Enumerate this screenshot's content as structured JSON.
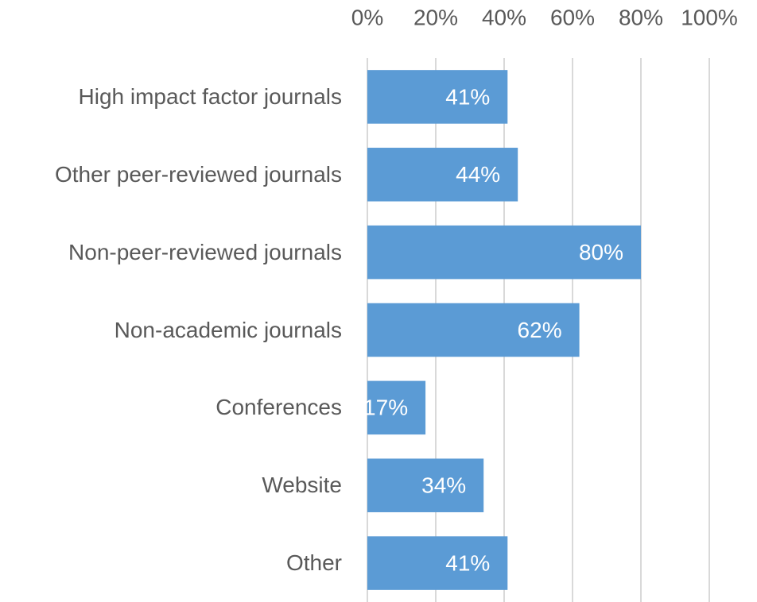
{
  "chart_data": {
    "type": "hbar",
    "categories": [
      "High impact factor journals",
      "Other peer-reviewed journals",
      "Non-peer-reviewed journals",
      "Non-academic journals",
      "Conferences",
      "Website",
      "Other"
    ],
    "values": [
      41,
      44,
      80,
      62,
      17,
      34,
      41
    ],
    "value_labels": [
      "41%",
      "44%",
      "80%",
      "62%",
      "17%",
      "34%",
      "41%"
    ],
    "color": "#5b9bd5",
    "xlim": [
      0,
      100
    ],
    "xticks": [
      {
        "value": 0,
        "label": "0%"
      },
      {
        "value": 20,
        "label": "20%"
      },
      {
        "value": 40,
        "label": "40%"
      },
      {
        "value": 60,
        "label": "60%"
      },
      {
        "value": 80,
        "label": "80%"
      },
      {
        "value": 100,
        "label": "100%"
      }
    ],
    "grid": true
  }
}
